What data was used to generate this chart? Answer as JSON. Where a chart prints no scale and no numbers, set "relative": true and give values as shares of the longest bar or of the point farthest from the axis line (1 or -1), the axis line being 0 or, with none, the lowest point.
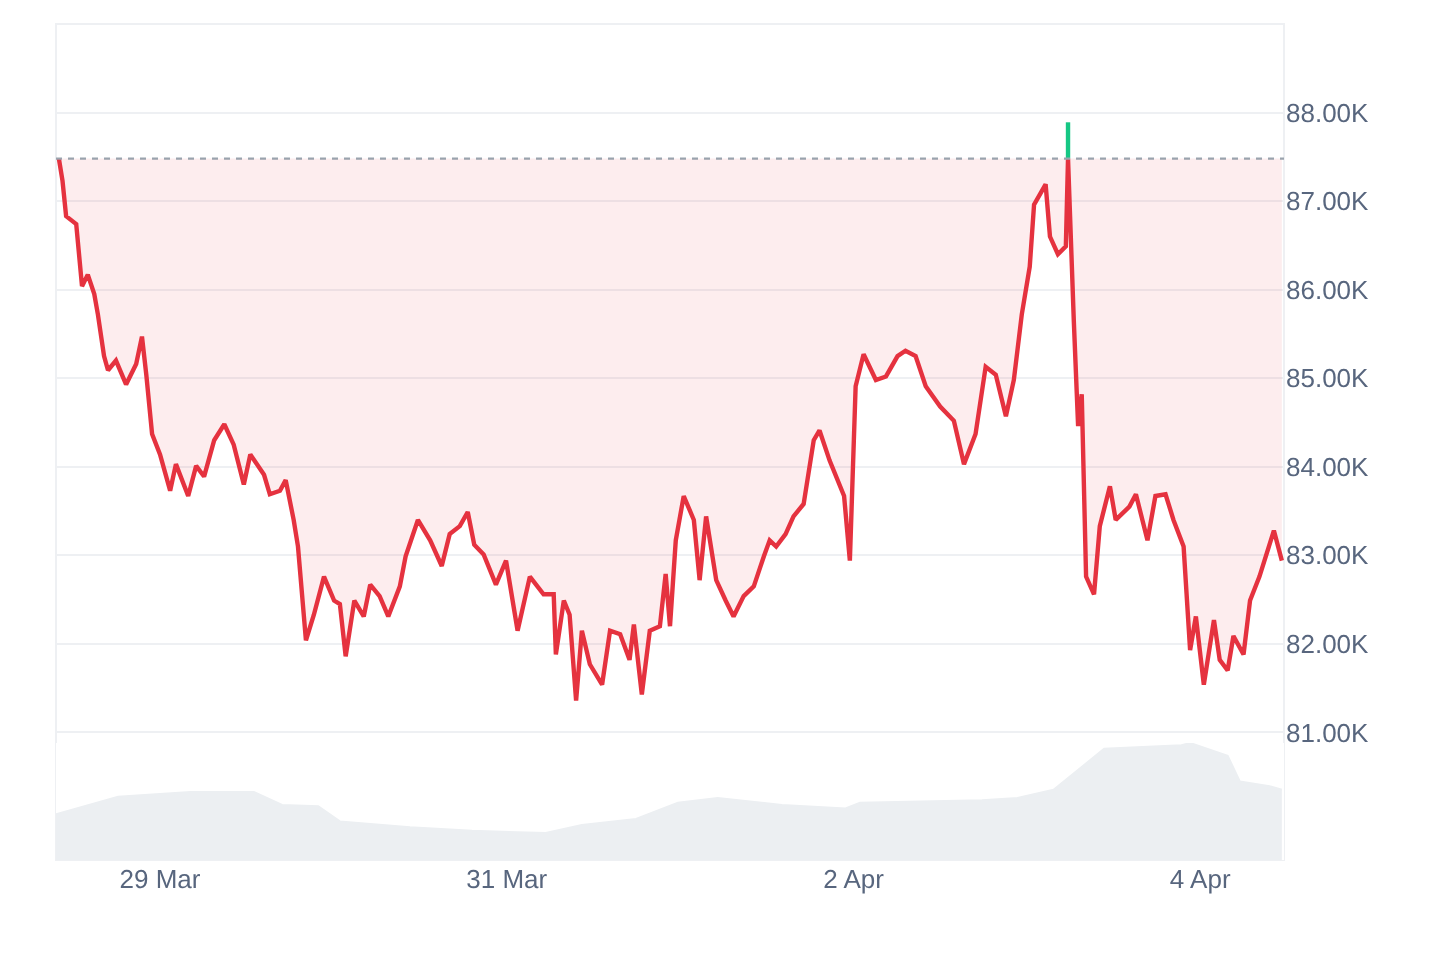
{
  "chart_data": [
    {
      "type": "line",
      "tick_labels": "y",
      "grid": "y",
      "marker": "none",
      "line_style": "solid",
      "xlim": [
        "--03-28T09:36",
        "--04-04T11:36"
      ],
      "xticks": [
        {
          "value": "--03-29",
          "label": "29 Mar"
        },
        {
          "value": "--03-31",
          "label": "31 Mar"
        },
        {
          "value": "--04-02",
          "label": "2 Apr"
        },
        {
          "value": "--04-04",
          "label": "4 Apr"
        }
      ],
      "ylim": [
        79.56,
        89.0
      ],
      "yticks": [
        {
          "value": 81,
          "label": "81.00K"
        },
        {
          "value": 82,
          "label": "82.00K"
        },
        {
          "value": 83,
          "label": "83.00K"
        },
        {
          "value": 84,
          "label": "84.00K"
        },
        {
          "value": 85,
          "label": "85.00K"
        },
        {
          "value": 86,
          "label": "86.00K"
        },
        {
          "value": 87,
          "label": "87.00K"
        },
        {
          "value": 88,
          "label": "88.00K"
        }
      ],
      "ref_lines": [
        {
          "axis": "y",
          "value": 87.48,
          "color": "#9aa3ad",
          "line_style": "dotted"
        }
      ],
      "series": [
        {
          "color": "#e5323f",
          "x": [
            "--03-28T10:00",
            "--03-28T10:30",
            "--03-28T11:00",
            "--03-28T12:24",
            "--03-28T13:12",
            "--03-28T14:00",
            "--03-28T14:54",
            "--03-28T15:24",
            "--03-28T16:15",
            "--03-28T16:48",
            "--03-28T17:54",
            "--03-28T19:18",
            "--03-28T20:42",
            "--03-28T21:30",
            "--03-28T22:06",
            "--03-28T22:54",
            "--03-29T00:00",
            "--03-29T01:24",
            "--03-29T02:12",
            "--03-29T03:54",
            "--03-29T05:00",
            "--03-29T06:06",
            "--03-29T07:30",
            "--03-29T08:54",
            "--03-29T10:12",
            "--03-29T11:36",
            "--03-29T12:30",
            "--03-29T14:24",
            "--03-29T15:12",
            "--03-29T16:36",
            "--03-29T17:24",
            "--03-29T18:30",
            "--03-29T19:06",
            "--03-29T20:12",
            "--03-29T21:18",
            "--03-29T22:42",
            "--03-30T00:06",
            "--03-30T00:54",
            "--03-30T01:42",
            "--03-30T02:54",
            "--03-30T04:12",
            "--03-30T05:06",
            "--03-30T06:24",
            "--03-30T07:36",
            "--03-30T09:12",
            "--03-30T10:00",
            "--03-30T11:42",
            "--03-30T13:24",
            "--03-30T15:00",
            "--03-30T16:06",
            "--03-30T17:30",
            "--03-30T18:36",
            "--03-30T19:30",
            "--03-30T20:48",
            "--03-30T22:30",
            "--03-30T23:54",
            "--03-31T01:30",
            "--03-31T03:12",
            "--03-31T05:06",
            "--03-31T06:30",
            "--03-31T06:48",
            "--03-31T07:54",
            "--03-31T08:42",
            "--03-31T09:36",
            "--03-31T10:24",
            "--03-31T11:30",
            "--03-31T13:12",
            "--03-31T14:18",
            "--03-31T15:42",
            "--03-31T17:00",
            "--03-31T17:36",
            "--03-31T18:42",
            "--03-31T19:48",
            "--03-31T21:12",
            "--03-31T22:00",
            "--03-31T22:36",
            "--03-31T23:24",
            "--04-01T00:30",
            "--04-01T01:54",
            "--04-01T02:42",
            "--04-01T03:36",
            "--04-01T05:00",
            "--04-01T06:18",
            "--04-01T07:24",
            "--04-01T08:48",
            "--04-01T10:12",
            "--04-01T11:36",
            "--04-01T12:24",
            "--04-01T13:18",
            "--04-01T14:36",
            "--04-01T15:42",
            "--04-01T17:06",
            "--04-01T18:30",
            "--04-01T19:18",
            "--04-01T20:42",
            "--04-01T22:42",
            "--04-01T23:30",
            "--04-02T00:18",
            "--04-02T01:24",
            "--04-02T03:06",
            "--04-02T04:30",
            "--04-02T06:06",
            "--04-02T07:12",
            "--04-02T08:36",
            "--04-02T10:00",
            "--04-02T12:00",
            "--04-02T13:54",
            "--04-02T15:18",
            "--04-02T16:54",
            "--04-02T18:18",
            "--04-02T19:42",
            "--04-02T21:06",
            "--04-02T22:12",
            "--04-02T23:18",
            "--04-03T00:24",
            "--04-03T01:00",
            "--04-03T02:36",
            "--04-03T03:12",
            "--04-03T04:18",
            "--04-03T05:24",
            "--04-03T05:42",
            "--04-03T06:30",
            "--04-03T07:06",
            "--04-03T07:36",
            "--04-03T08:12",
            "--04-03T09:18",
            "--04-03T10:06",
            "--04-03T11:30",
            "--04-03T12:18",
            "--04-03T14:12",
            "--04-03T15:06",
            "--04-03T16:42",
            "--04-03T17:48",
            "--04-03T19:12",
            "--04-03T20:18",
            "--04-03T21:42",
            "--04-03T22:36",
            "--04-03T23:24",
            "--04-04T00:30",
            "--04-04T01:54",
            "--04-04T02:42",
            "--04-04T03:48",
            "--04-04T04:36",
            "--04-04T06:00",
            "--04-04T06:54",
            "--04-04T08:12",
            "--04-04T10:12",
            "--04-04T11:18"
          ],
          "values": [
            87.48,
            87.23,
            86.83,
            86.74,
            86.04,
            86.17,
            85.95,
            85.72,
            85.25,
            85.09,
            85.2,
            84.93,
            85.16,
            85.47,
            85.04,
            84.37,
            84.14,
            83.73,
            84.03,
            83.67,
            84.01,
            83.89,
            84.3,
            84.48,
            84.25,
            83.8,
            84.14,
            83.91,
            83.69,
            83.73,
            83.85,
            83.4,
            83.1,
            82.04,
            82.33,
            82.76,
            82.49,
            82.45,
            81.86,
            82.49,
            82.31,
            82.67,
            82.54,
            82.31,
            82.65,
            82.99,
            83.4,
            83.17,
            82.88,
            83.24,
            83.33,
            83.49,
            83.12,
            83.01,
            82.67,
            82.94,
            82.15,
            82.76,
            82.56,
            82.56,
            81.88,
            82.49,
            82.33,
            81.36,
            82.15,
            81.77,
            81.54,
            82.15,
            82.11,
            81.82,
            82.22,
            81.43,
            82.15,
            82.2,
            82.79,
            82.2,
            83.17,
            83.67,
            83.4,
            82.72,
            83.44,
            82.72,
            82.49,
            82.31,
            82.54,
            82.65,
            82.99,
            83.17,
            83.1,
            83.24,
            83.44,
            83.58,
            84.3,
            84.41,
            84.07,
            83.67,
            82.94,
            84.91,
            85.27,
            84.98,
            85.02,
            85.25,
            85.31,
            85.25,
            84.91,
            84.68,
            84.52,
            84.03,
            84.37,
            85.13,
            85.04,
            84.57,
            84.98,
            85.72,
            86.26,
            86.96,
            87.19,
            86.6,
            86.4,
            86.49,
            87.48,
            85.65,
            84.46,
            84.82,
            82.76,
            82.56,
            83.33,
            83.78,
            83.4,
            83.55,
            83.69,
            83.17,
            83.67,
            83.69,
            83.4,
            83.1,
            81.93,
            82.31,
            81.54,
            82.27,
            81.82,
            81.7,
            82.09,
            81.88,
            82.49,
            82.76,
            83.28,
            82.94
          ]
        },
        {
          "color": "#16c784",
          "x": [
            "--04-03T05:42",
            "--04-03T05:42"
          ],
          "values": [
            87.48,
            87.89
          ]
        }
      ]
    },
    {
      "type": "area",
      "relative": true,
      "tick_labels": "x",
      "grid": false,
      "xlim": [
        "--03-28T09:36",
        "--04-04T11:36"
      ],
      "xticks": [
        {
          "value": "--03-29",
          "label": "29 Mar"
        },
        {
          "value": "--03-31",
          "label": "31 Mar"
        },
        {
          "value": "--04-02",
          "label": "2 Apr"
        },
        {
          "value": "--04-04",
          "label": "4 Apr"
        }
      ],
      "series": [
        {
          "color": "#eceff2",
          "x": [
            "--03-28T09:36",
            "--03-28T18:12",
            "--03-29T04:12",
            "--03-29T13:00",
            "--03-29T16:54",
            "--03-29T21:54",
            "--03-30T00:54",
            "--03-30T10:36",
            "--03-30T19:12",
            "--03-31T05:24",
            "--03-31T10:24",
            "--03-31T17:54",
            "--03-31T23:42",
            "--04-01T05:12",
            "--04-01T14:06",
            "--04-01T22:54",
            "--04-02T00:54",
            "--04-02T17:48",
            "--04-02T22:42",
            "--04-03T03:42",
            "--04-03T10:42",
            "--04-03T21:24",
            "--04-03T22:36",
            "--04-04T03:48",
            "--04-04T05:30",
            "--04-04T09:36",
            "--04-04T11:18"
          ],
          "values": [
            0.39,
            0.54,
            0.58,
            0.58,
            0.47,
            0.46,
            0.33,
            0.28,
            0.25,
            0.23,
            0.3,
            0.35,
            0.49,
            0.53,
            0.47,
            0.44,
            0.49,
            0.51,
            0.53,
            0.6,
            0.95,
            0.98,
            1.0,
            0.89,
            0.67,
            0.63,
            0.6
          ]
        }
      ]
    }
  ]
}
